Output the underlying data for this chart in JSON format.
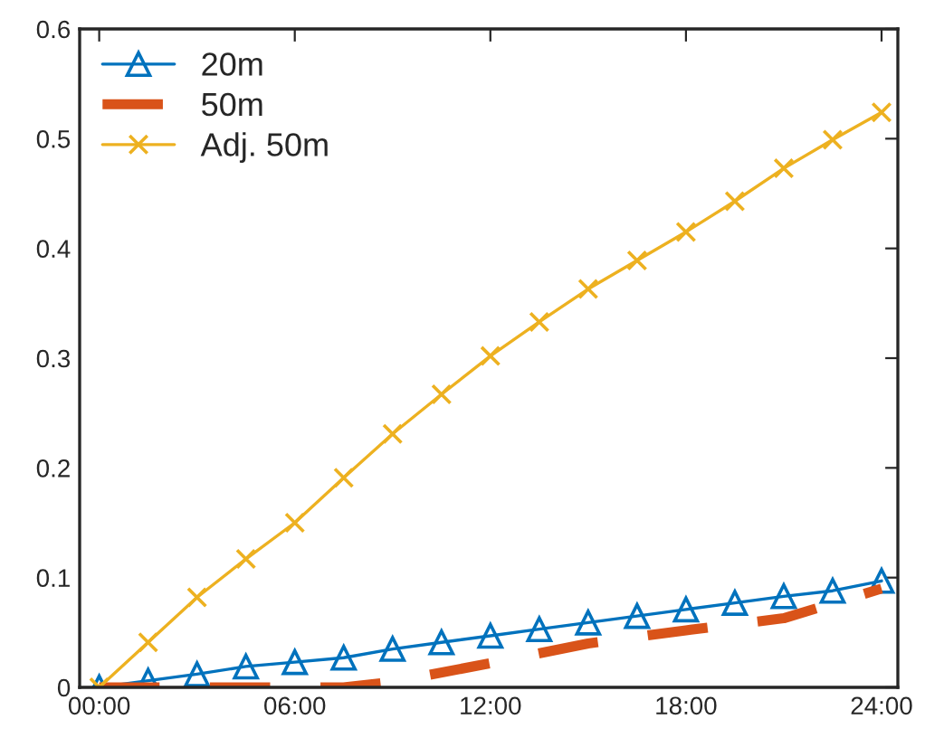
{
  "chart_data": {
    "type": "line",
    "xlim": [
      -0.6,
      24.5
    ],
    "ylim": [
      0,
      0.6
    ],
    "xticks": [
      {
        "value": 0,
        "label": "00:00"
      },
      {
        "value": 6,
        "label": "06:00"
      },
      {
        "value": 12,
        "label": "12:00"
      },
      {
        "value": 18,
        "label": "18:00"
      },
      {
        "value": 24,
        "label": "24:00"
      }
    ],
    "yticks": [
      0,
      0.1,
      0.2,
      0.3,
      0.4,
      0.5,
      0.6
    ],
    "grid": false,
    "legend": "top left",
    "series": [
      {
        "name": "20m",
        "color": "#0072bd",
        "marker": "triangle",
        "line_style": "solid",
        "x": [
          0,
          1.5,
          3,
          4.5,
          6,
          7.5,
          9,
          10.5,
          12,
          13.5,
          15,
          16.5,
          18,
          19.5,
          21,
          22.5,
          24
        ],
        "values": [
          0,
          0.006,
          0.012,
          0.019,
          0.023,
          0.027,
          0.035,
          0.041,
          0.047,
          0.053,
          0.059,
          0.065,
          0.071,
          0.077,
          0.083,
          0.088,
          0.097
        ]
      },
      {
        "name": "50m",
        "color": "#d95319",
        "marker": "none",
        "line_style": "dashed",
        "x": [
          0,
          7.5,
          9,
          12,
          15,
          18,
          21,
          24
        ],
        "values": [
          0,
          0,
          0.005,
          0.022,
          0.04,
          0.052,
          0.063,
          0.09
        ]
      },
      {
        "name": "Adj. 50m",
        "color": "#edb120",
        "marker": "cross",
        "line_style": "solid",
        "x": [
          0,
          1.5,
          3,
          4.5,
          6,
          7.5,
          9,
          10.5,
          12,
          13.5,
          15,
          16.5,
          18,
          19.5,
          21,
          22.5,
          24
        ],
        "values": [
          0,
          0.041,
          0.082,
          0.117,
          0.15,
          0.191,
          0.231,
          0.267,
          0.302,
          0.333,
          0.363,
          0.389,
          0.415,
          0.443,
          0.473,
          0.499,
          0.524
        ]
      }
    ]
  }
}
